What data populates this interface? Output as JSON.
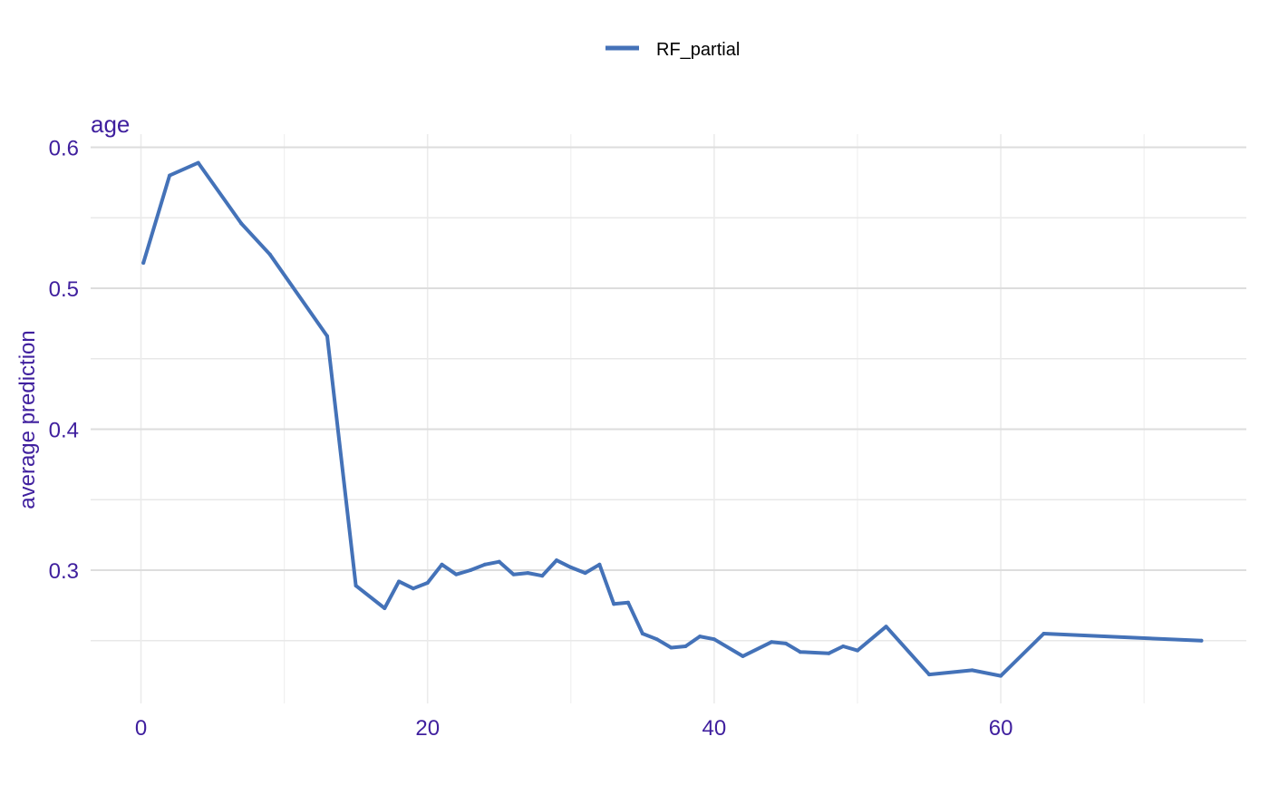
{
  "chart_data": {
    "type": "line",
    "title": "age",
    "xlabel": "",
    "ylabel": "average prediction",
    "xlim": [
      0,
      74
    ],
    "ylim": [
      0.21,
      0.605
    ],
    "x_ticks": [
      0,
      20,
      40,
      60
    ],
    "x_tick_labels": [
      "0",
      "20",
      "40",
      "60"
    ],
    "y_ticks": [
      0.3,
      0.4,
      0.5,
      0.6
    ],
    "y_tick_labels": [
      "0.3",
      "0.4",
      "0.5",
      "0.6"
    ],
    "grid": true,
    "legend": {
      "position": "top",
      "entries": [
        "RF_partial"
      ]
    },
    "series": [
      {
        "name": "RF_partial",
        "color": "#4472b8",
        "x": [
          0.17,
          2,
          4,
          7,
          9,
          13,
          15,
          17,
          18,
          19,
          20,
          21,
          22,
          23,
          24,
          25,
          26,
          27,
          28,
          29,
          30,
          31,
          32,
          33,
          34,
          35,
          36,
          37,
          38,
          39,
          40,
          42,
          44,
          45,
          46,
          48,
          49,
          50,
          52,
          55,
          58,
          60,
          63,
          74
        ],
        "y": [
          0.518,
          0.58,
          0.589,
          0.546,
          0.524,
          0.466,
          0.289,
          0.273,
          0.292,
          0.287,
          0.291,
          0.304,
          0.297,
          0.3,
          0.304,
          0.306,
          0.297,
          0.298,
          0.296,
          0.307,
          0.302,
          0.298,
          0.304,
          0.276,
          0.277,
          0.255,
          0.251,
          0.245,
          0.246,
          0.253,
          0.251,
          0.239,
          0.249,
          0.248,
          0.242,
          0.241,
          0.246,
          0.243,
          0.26,
          0.226,
          0.229,
          0.225,
          0.255,
          0.25
        ]
      }
    ]
  }
}
